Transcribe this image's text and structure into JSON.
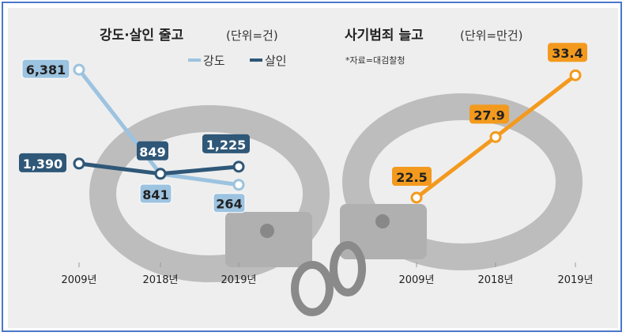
{
  "chart_data": [
    {
      "type": "line",
      "title": "강도·살인 줄고",
      "unit": "(단위=건)",
      "categories": [
        "2009년",
        "2018년",
        "2019년"
      ],
      "legend_placement": "top-right",
      "series": [
        {
          "name": "강도",
          "values": [
            6381,
            841,
            264
          ],
          "labels": [
            "6,381",
            "841",
            "264"
          ],
          "color": "#9cc3e0"
        },
        {
          "name": "살인",
          "values": [
            1390,
            849,
            1225
          ],
          "labels": [
            "1,390",
            "849",
            "1,225"
          ],
          "color": "#2f5777"
        }
      ]
    },
    {
      "type": "line",
      "title": "사기범죄 늘고",
      "unit": "(단위=만건)",
      "source": "*자료=대검찰청",
      "categories": [
        "2009년",
        "2018년",
        "2019년"
      ],
      "series": [
        {
          "values": [
            22.5,
            27.9,
            33.4
          ],
          "labels": [
            "22.5",
            "27.9",
            "33.4"
          ],
          "color": "#f39a1e"
        }
      ]
    }
  ]
}
